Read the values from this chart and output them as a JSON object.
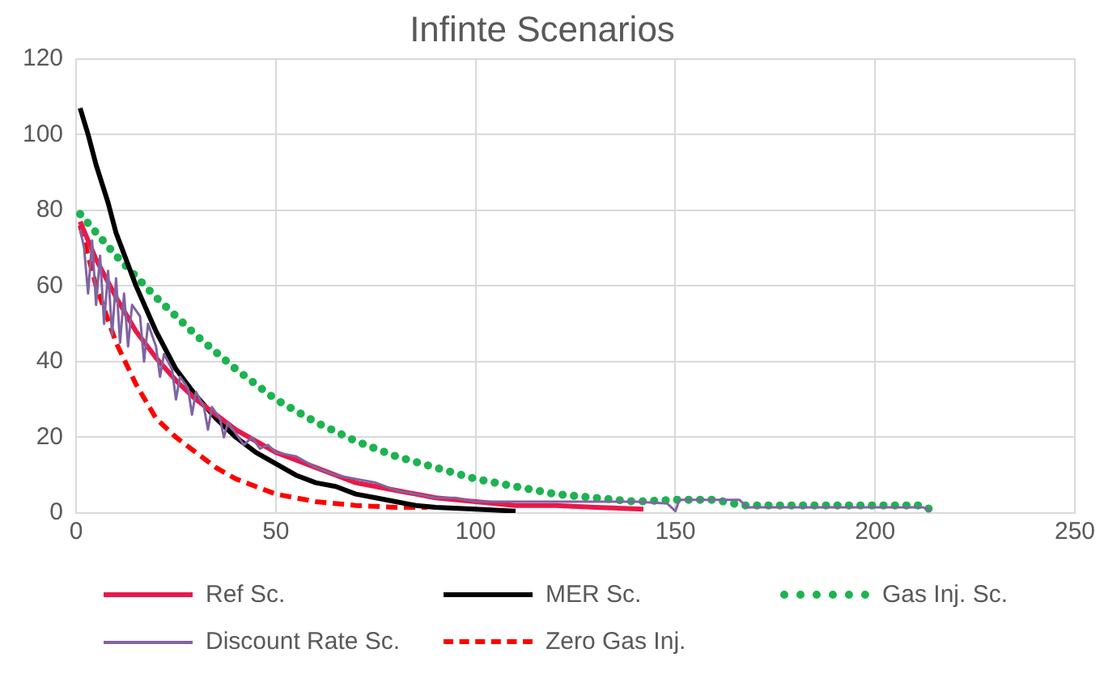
{
  "chart_data": {
    "type": "line",
    "title": "Infinte Scenarios",
    "xlim": [
      0,
      250
    ],
    "xticks": [
      0,
      50,
      100,
      150,
      200,
      250
    ],
    "ylim": [
      0,
      120
    ],
    "yticks": [
      0,
      20,
      40,
      60,
      80,
      100,
      120
    ],
    "grid": true,
    "legend": "bottom",
    "marker": "none",
    "series": [
      {
        "name": "Ref Sc.",
        "color": "#e8194a",
        "line_style": "solid",
        "x": [
          1,
          5,
          10,
          15,
          20,
          25,
          30,
          35,
          40,
          45,
          50,
          55,
          60,
          65,
          70,
          75,
          80,
          90,
          100,
          110,
          120,
          130,
          142
        ],
        "values": [
          77,
          67,
          57,
          48,
          41,
          35,
          30,
          26,
          22,
          19,
          16,
          14,
          12,
          10,
          8,
          7,
          6,
          4,
          3,
          2,
          2,
          1.5,
          1
        ]
      },
      {
        "name": "MER Sc.",
        "color": "#000000",
        "line_style": "solid",
        "x": [
          1,
          3,
          5,
          8,
          10,
          15,
          20,
          25,
          30,
          35,
          40,
          45,
          50,
          55,
          60,
          65,
          70,
          75,
          80,
          85,
          90,
          100,
          110
        ],
        "values": [
          107,
          100,
          92,
          82,
          74,
          60,
          48,
          38,
          31,
          25,
          20,
          16,
          13,
          10,
          8,
          7,
          5,
          4,
          3,
          2,
          1.5,
          1,
          0.5
        ]
      },
      {
        "name": "Gas Inj. Sc.",
        "color": "#1db350",
        "line_style": "dotted",
        "x": [
          1,
          10,
          20,
          30,
          40,
          50,
          60,
          70,
          80,
          90,
          100,
          110,
          120,
          130,
          140,
          150,
          160,
          167,
          180,
          200,
          212,
          214
        ],
        "values": [
          79,
          68,
          57,
          47,
          38,
          30,
          24,
          19,
          15,
          12,
          9,
          7,
          5,
          4,
          3,
          3.5,
          3.5,
          2,
          2,
          2,
          2,
          0.8
        ]
      },
      {
        "name": "Discount Rate Sc.",
        "color": "#8064a2",
        "line_style": "solid",
        "x": [
          1,
          2,
          3,
          4,
          5,
          6,
          7,
          8,
          9,
          10,
          11,
          12,
          13,
          14,
          16,
          17,
          18,
          20,
          21,
          22,
          24,
          25,
          26,
          28,
          29,
          30,
          32,
          33,
          34,
          36,
          37,
          38,
          40,
          42,
          44,
          46,
          48,
          50,
          55,
          60,
          65,
          70,
          75,
          80,
          85,
          90,
          95,
          100,
          110,
          120,
          130,
          140,
          148,
          150,
          151,
          166,
          168,
          212,
          214
        ],
        "values": [
          75,
          70,
          58,
          72,
          55,
          68,
          50,
          64,
          47,
          62,
          45,
          58,
          44,
          55,
          52,
          40,
          50,
          44,
          36,
          42,
          38,
          30,
          36,
          33,
          26,
          32,
          28,
          22,
          28,
          25,
          20,
          24,
          21,
          18,
          20,
          17,
          18,
          16,
          15,
          12,
          10,
          9,
          8,
          6,
          5,
          4,
          4,
          3,
          3,
          3,
          3,
          3,
          2.5,
          0.5,
          3.5,
          3.5,
          1.5,
          1.5,
          0.5
        ]
      },
      {
        "name": "Zero Gas Inj.",
        "color": "#ff0000",
        "line_style": "dashed",
        "x": [
          1,
          5,
          10,
          15,
          20,
          25,
          30,
          35,
          40,
          45,
          50,
          55,
          60,
          70,
          80,
          88
        ],
        "values": [
          76,
          60,
          45,
          34,
          25,
          20,
          16,
          12,
          9,
          7,
          5,
          4,
          3,
          2,
          1.5,
          1.5
        ]
      }
    ]
  }
}
